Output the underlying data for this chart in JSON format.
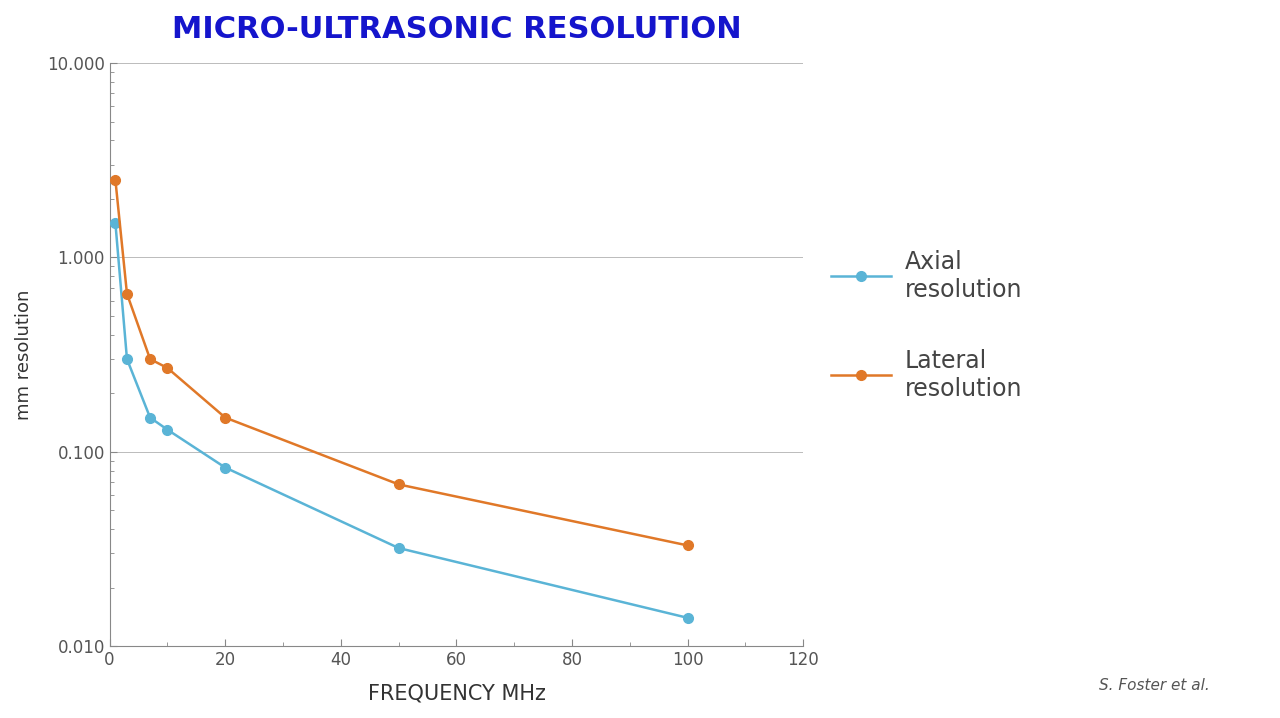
{
  "title": "MICRO-ULTRASONIC RESOLUTION",
  "title_color": "#1515CC",
  "title_fontsize": 22,
  "title_fontweight": "bold",
  "xlabel": "FREQUENCY MHz",
  "ylabel": "mm resolution",
  "xlabel_fontsize": 15,
  "ylabel_fontsize": 13,
  "background_color": "#ffffff",
  "axial": {
    "x": [
      1,
      3,
      7,
      10,
      20,
      50,
      100
    ],
    "y": [
      1.5,
      0.3,
      0.15,
      0.13,
      0.083,
      0.032,
      0.014
    ],
    "color": "#5ab4d6",
    "label": "Axial\nresolution",
    "marker": "o",
    "linewidth": 1.8,
    "markersize": 7
  },
  "lateral": {
    "x": [
      1,
      3,
      7,
      10,
      20,
      50,
      100
    ],
    "y": [
      2.5,
      0.65,
      0.3,
      0.27,
      0.15,
      0.068,
      0.033
    ],
    "color": "#e07828",
    "label": "Lateral\nresolution",
    "marker": "o",
    "linewidth": 1.8,
    "markersize": 7
  },
  "xlim": [
    0,
    120
  ],
  "ylim": [
    0.01,
    10.0
  ],
  "xticks": [
    0,
    20,
    40,
    60,
    80,
    100,
    120
  ],
  "grid_color": "#bbbbbb",
  "grid_linewidth": 0.7,
  "annotation": "S. Foster et al.",
  "annotation_fontsize": 11,
  "legend_fontsize": 17,
  "tick_label_color": "#555555",
  "tick_fontsize": 12
}
